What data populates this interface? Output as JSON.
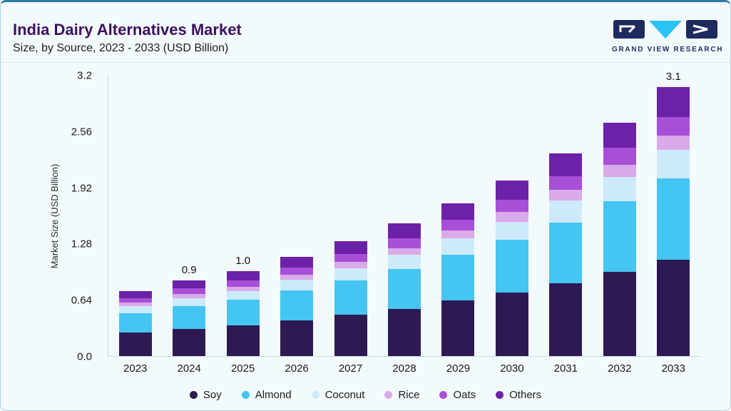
{
  "header": {
    "title": "India Dairy Alternatives Market",
    "subtitle": "Size, by Source, 2023 - 2033 (USD Billion)",
    "logo_text": "GRAND VIEW RESEARCH"
  },
  "chart_data": {
    "type": "bar",
    "stacked": true,
    "title": "India Dairy Alternatives Market Size, by Source, 2023 - 2033 (USD Billion)",
    "xlabel": "",
    "ylabel": "Market Size (USD Billion)",
    "ylim": [
      0,
      3.2
    ],
    "yticks": [
      0,
      0.64,
      1.28,
      1.92,
      2.56,
      3.2
    ],
    "ytick_labels": [
      "0.0",
      "0.64",
      "1.28",
      "1.92",
      "2.56",
      "3.2"
    ],
    "grid": false,
    "legend_position": "bottom",
    "categories": [
      "2023",
      "2024",
      "2025",
      "2026",
      "2027",
      "2028",
      "2029",
      "2030",
      "2031",
      "2032",
      "2033"
    ],
    "series": [
      {
        "name": "Soy",
        "color": "#2e1a52",
        "values": [
          0.27,
          0.31,
          0.35,
          0.41,
          0.47,
          0.54,
          0.63,
          0.72,
          0.83,
          0.96,
          1.1
        ]
      },
      {
        "name": "Almond",
        "color": "#45c5f1",
        "values": [
          0.22,
          0.26,
          0.29,
          0.34,
          0.39,
          0.45,
          0.52,
          0.6,
          0.69,
          0.8,
          0.92
        ]
      },
      {
        "name": "Coconut",
        "color": "#cdeafa",
        "values": [
          0.08,
          0.09,
          0.1,
          0.12,
          0.14,
          0.16,
          0.19,
          0.21,
          0.25,
          0.28,
          0.33
        ]
      },
      {
        "name": "Rice",
        "color": "#d9aae8",
        "values": [
          0.04,
          0.05,
          0.05,
          0.06,
          0.07,
          0.08,
          0.09,
          0.11,
          0.12,
          0.14,
          0.16
        ]
      },
      {
        "name": "Oats",
        "color": "#a84fd8",
        "values": [
          0.05,
          0.06,
          0.07,
          0.08,
          0.09,
          0.11,
          0.12,
          0.14,
          0.16,
          0.19,
          0.21
        ]
      },
      {
        "name": "Others",
        "color": "#6b21a8",
        "values": [
          0.08,
          0.09,
          0.11,
          0.12,
          0.15,
          0.17,
          0.19,
          0.22,
          0.26,
          0.29,
          0.34
        ]
      }
    ],
    "annotations": {
      "2024": "0.9",
      "2025": "1.0",
      "2033": "3.1"
    }
  }
}
